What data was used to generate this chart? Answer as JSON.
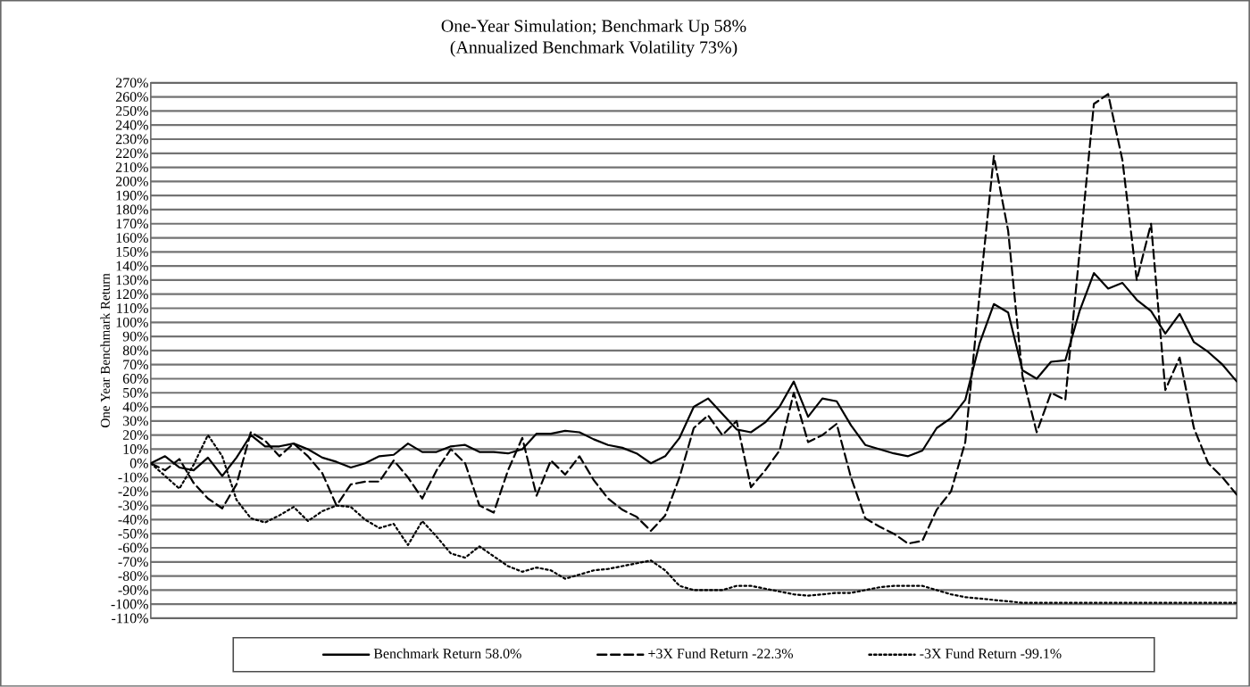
{
  "chart_data": {
    "type": "line",
    "title": "One-Year Simulation; Benchmark Up 58%",
    "subtitle": "(Annualized Benchmark Volatility 73%)",
    "ylabel": "One Year Benchmark Return",
    "tick_labels": "y",
    "grid": "y",
    "legend": "bottom",
    "marker": "none",
    "categories": [
      null,
      null,
      null,
      null,
      null,
      null,
      null,
      null,
      null,
      null,
      null,
      null,
      null,
      null,
      null,
      null,
      null,
      null,
      null,
      null,
      null,
      null,
      null,
      null,
      null,
      null,
      null,
      null,
      null,
      null,
      null,
      null,
      null,
      null,
      null,
      null,
      null,
      null,
      null,
      null,
      null,
      null,
      null,
      null,
      null,
      null,
      null,
      null,
      null,
      null,
      null,
      null,
      null,
      null,
      null,
      null,
      null,
      null,
      null,
      null,
      null,
      null,
      null,
      null,
      null,
      null,
      null,
      null,
      null,
      null,
      null,
      null,
      null,
      null,
      null,
      null,
      null
    ],
    "ylim": [
      -110,
      270
    ],
    "yticks": [
      {
        "value": -110,
        "label": "-110%"
      },
      {
        "value": -100,
        "label": "-100%"
      },
      {
        "value": -90,
        "label": "-90%"
      },
      {
        "value": -80,
        "label": "-80%"
      },
      {
        "value": -70,
        "label": "-70%"
      },
      {
        "value": -60,
        "label": "-60%"
      },
      {
        "value": -50,
        "label": "-50%"
      },
      {
        "value": -40,
        "label": "-40%"
      },
      {
        "value": -30,
        "label": "-30%"
      },
      {
        "value": -20,
        "label": "-20%"
      },
      {
        "value": -10,
        "label": "-10%"
      },
      {
        "value": 0,
        "label": "0%"
      },
      {
        "value": 10,
        "label": "10%"
      },
      {
        "value": 20,
        "label": "20%"
      },
      {
        "value": 30,
        "label": "30%"
      },
      {
        "value": 40,
        "label": "40%"
      },
      {
        "value": 50,
        "label": "50%"
      },
      {
        "value": 60,
        "label": "60%"
      },
      {
        "value": 70,
        "label": "70%"
      },
      {
        "value": 80,
        "label": "80%"
      },
      {
        "value": 90,
        "label": "90%"
      },
      {
        "value": 100,
        "label": "100%"
      },
      {
        "value": 110,
        "label": "110%"
      },
      {
        "value": 120,
        "label": "120%"
      },
      {
        "value": 130,
        "label": "130%"
      },
      {
        "value": 140,
        "label": "140%"
      },
      {
        "value": 150,
        "label": "150%"
      },
      {
        "value": 160,
        "label": "160%"
      },
      {
        "value": 170,
        "label": "170%"
      },
      {
        "value": 180,
        "label": "180%"
      },
      {
        "value": 190,
        "label": "190%"
      },
      {
        "value": 200,
        "label": "200%"
      },
      {
        "value": 210,
        "label": "210%"
      },
      {
        "value": 220,
        "label": "220%"
      },
      {
        "value": 230,
        "label": "230%"
      },
      {
        "value": 240,
        "label": "240%"
      },
      {
        "value": 250,
        "label": "250%"
      },
      {
        "value": 260,
        "label": "260%"
      },
      {
        "value": 270,
        "label": "270%"
      }
    ],
    "series": [
      {
        "name": "Benchmark Return 58.0%",
        "color": "#000000",
        "line_style": "solid",
        "values": [
          0,
          5,
          -3,
          -5,
          4,
          -9,
          4,
          20,
          12,
          12,
          14,
          10,
          4,
          1,
          -3,
          0,
          5,
          6,
          14,
          8,
          8,
          12,
          13,
          8,
          8,
          7,
          10,
          21,
          21,
          23,
          22,
          17,
          13,
          11,
          7,
          0,
          5,
          18,
          40,
          46,
          35,
          24,
          22,
          29,
          40,
          58,
          33,
          46,
          44,
          27,
          13,
          10,
          7,
          5,
          9,
          25,
          32,
          45,
          85,
          113,
          107,
          66,
          60,
          72,
          73,
          108,
          135,
          124,
          128,
          116,
          108,
          92,
          106,
          86,
          79,
          70,
          58
        ]
      },
      {
        "name": "+3X Fund Return -22.3%",
        "color": "#000000",
        "line_style": "dashed",
        "values": [
          0,
          -5,
          3,
          -14,
          -25,
          -32,
          -15,
          22,
          16,
          5,
          14,
          5,
          -7,
          -30,
          -15,
          -13,
          -13,
          2,
          -10,
          -25,
          -5,
          10,
          0,
          -30,
          -35,
          -5,
          18,
          -23,
          2,
          -8,
          5,
          -12,
          -25,
          -33,
          -38,
          -48,
          -37,
          -10,
          25,
          34,
          20,
          30,
          -17,
          -5,
          9,
          50,
          15,
          20,
          28,
          -10,
          -39,
          -45,
          -50,
          -57,
          -55,
          -33,
          -20,
          15,
          120,
          218,
          165,
          62,
          22,
          50,
          45,
          150,
          255,
          262,
          215,
          130,
          170,
          52,
          75,
          25,
          0,
          -10,
          -22.3
        ]
      },
      {
        "name": "-3X Fund Return -99.1%",
        "color": "#000000",
        "line_style": "dotted",
        "values": [
          0,
          -9,
          -18,
          -1,
          20,
          5,
          -26,
          -39,
          -42,
          -37,
          -31,
          -41,
          -34,
          -30,
          -31,
          -40,
          -46,
          -43,
          -58,
          -41,
          -52,
          -64,
          -67,
          -59,
          -66,
          -73,
          -77,
          -74,
          -76,
          -82,
          -79,
          -76,
          -75,
          -73,
          -71,
          -69,
          -76,
          -87,
          -90,
          -90,
          -90,
          -87,
          -87,
          -89,
          -91,
          -93,
          -94,
          -93,
          -92,
          -92,
          -90,
          -88,
          -87,
          -87,
          -87,
          -90,
          -93,
          -95,
          -96,
          -97,
          -98,
          -99,
          -99,
          -99,
          -99,
          -99,
          -99,
          -99,
          -99,
          -99,
          -99,
          -99,
          -99,
          -99,
          -99,
          -99,
          -99.1
        ]
      }
    ]
  }
}
